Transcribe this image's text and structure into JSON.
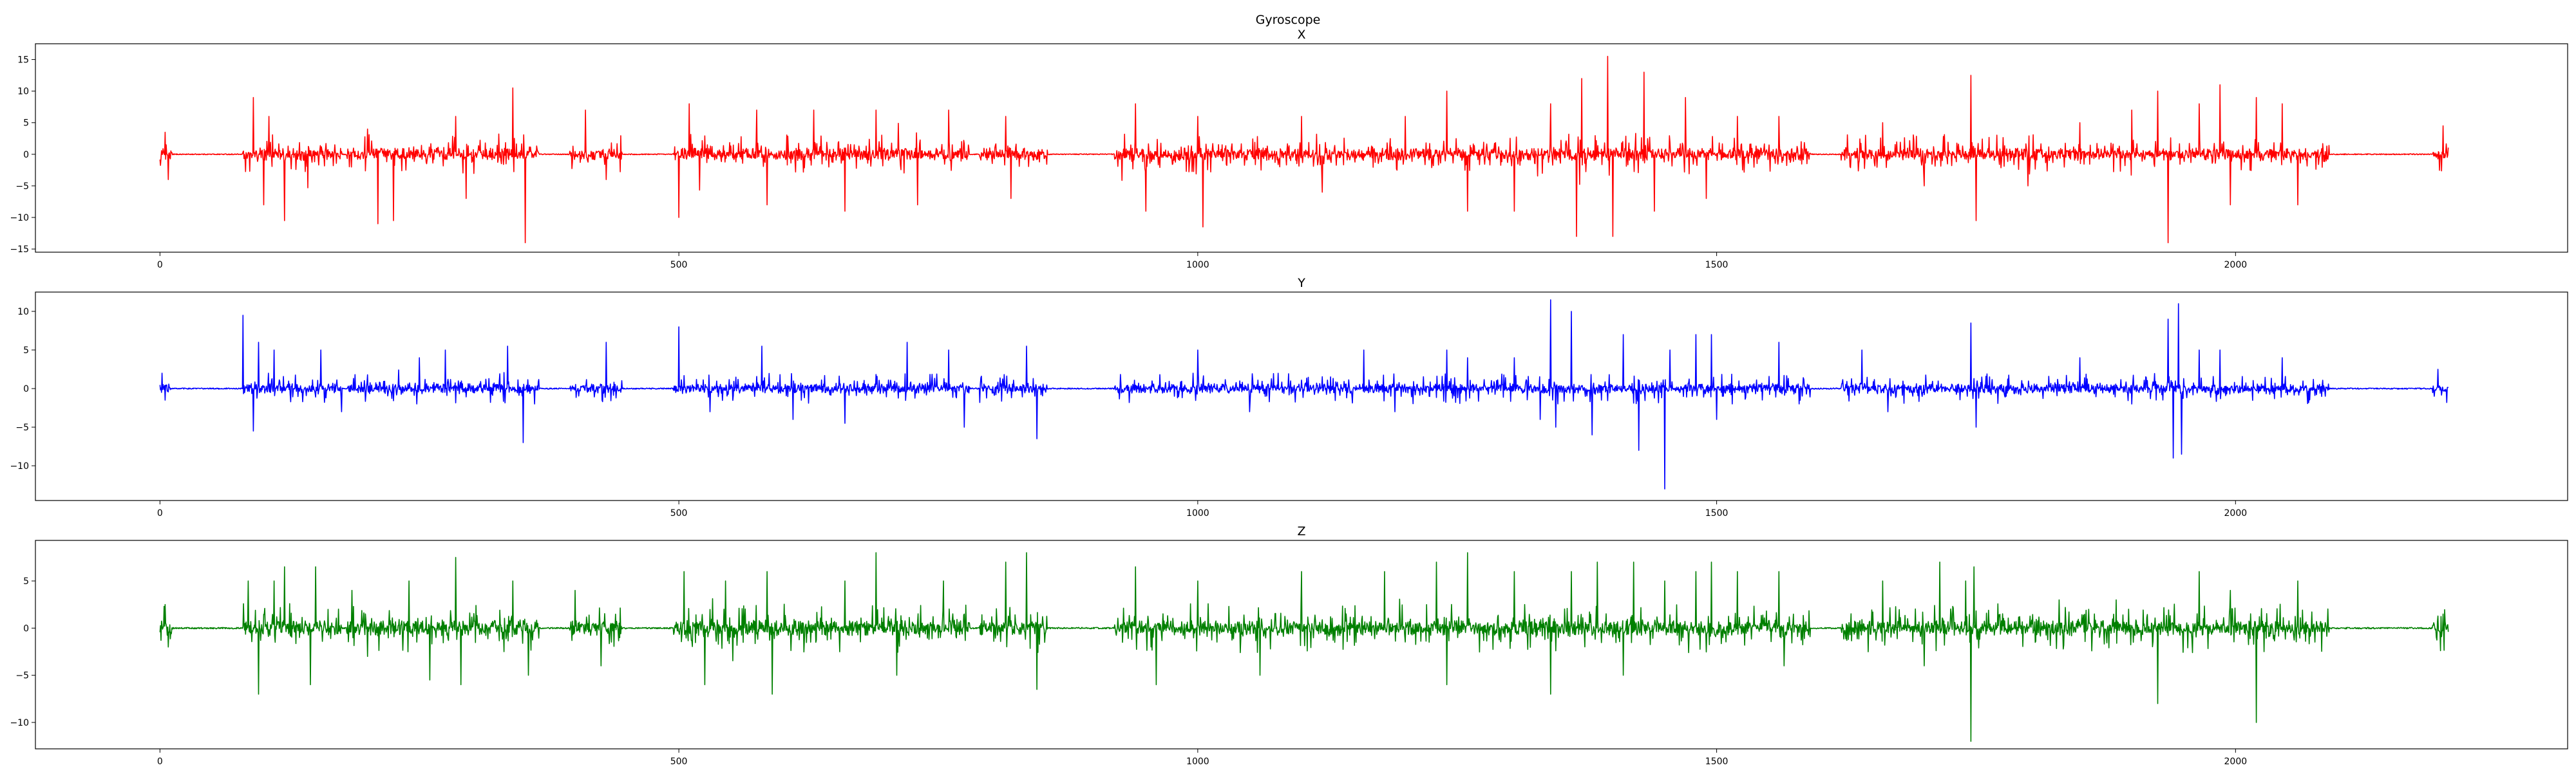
{
  "figure": {
    "title": "Gyroscope"
  },
  "chart_data": [
    {
      "type": "line",
      "title": "X",
      "xlabel": "",
      "ylabel": "",
      "xlim": [
        -120,
        2320
      ],
      "ylim": [
        -15.5,
        17.5
      ],
      "x_ticks": [
        0,
        500,
        1000,
        1500,
        2000
      ],
      "y_ticks": [
        -15,
        -10,
        -5,
        0,
        5,
        10,
        15
      ],
      "color": "#ff0000",
      "x_range": [
        0,
        2205
      ],
      "active_segments": [
        [
          0,
          12
        ],
        [
          80,
          175
        ],
        [
          180,
          365
        ],
        [
          395,
          445
        ],
        [
          495,
          780
        ],
        [
          790,
          855
        ],
        [
          920,
          1590
        ],
        [
          1620,
          2090
        ],
        [
          2190,
          2205
        ]
      ],
      "peaks": [
        {
          "x": 5,
          "y": 3.5
        },
        {
          "x": 8,
          "y": -4
        },
        {
          "x": 90,
          "y": 9
        },
        {
          "x": 100,
          "y": -8
        },
        {
          "x": 105,
          "y": 6
        },
        {
          "x": 120,
          "y": -10.5
        },
        {
          "x": 200,
          "y": 4
        },
        {
          "x": 210,
          "y": -11
        },
        {
          "x": 225,
          "y": -10.5
        },
        {
          "x": 285,
          "y": 6
        },
        {
          "x": 295,
          "y": -7
        },
        {
          "x": 340,
          "y": 10.5
        },
        {
          "x": 352,
          "y": -14
        },
        {
          "x": 410,
          "y": 7
        },
        {
          "x": 430,
          "y": -4
        },
        {
          "x": 510,
          "y": 8
        },
        {
          "x": 500,
          "y": -10
        },
        {
          "x": 575,
          "y": 7
        },
        {
          "x": 585,
          "y": -8
        },
        {
          "x": 630,
          "y": 7
        },
        {
          "x": 660,
          "y": -9
        },
        {
          "x": 690,
          "y": 7
        },
        {
          "x": 730,
          "y": -8
        },
        {
          "x": 760,
          "y": 7
        },
        {
          "x": 815,
          "y": 6
        },
        {
          "x": 820,
          "y": -7
        },
        {
          "x": 940,
          "y": 8
        },
        {
          "x": 950,
          "y": -9
        },
        {
          "x": 1000,
          "y": 6
        },
        {
          "x": 1005,
          "y": -11.5
        },
        {
          "x": 1100,
          "y": 6
        },
        {
          "x": 1120,
          "y": -6
        },
        {
          "x": 1200,
          "y": 6
        },
        {
          "x": 1240,
          "y": 10
        },
        {
          "x": 1260,
          "y": -9
        },
        {
          "x": 1305,
          "y": -9
        },
        {
          "x": 1340,
          "y": 8
        },
        {
          "x": 1365,
          "y": -13
        },
        {
          "x": 1370,
          "y": 12
        },
        {
          "x": 1395,
          "y": 15.5
        },
        {
          "x": 1400,
          "y": -13
        },
        {
          "x": 1430,
          "y": 13
        },
        {
          "x": 1440,
          "y": -9
        },
        {
          "x": 1470,
          "y": 9
        },
        {
          "x": 1490,
          "y": -7
        },
        {
          "x": 1520,
          "y": 6
        },
        {
          "x": 1560,
          "y": 6
        },
        {
          "x": 1660,
          "y": 5
        },
        {
          "x": 1700,
          "y": -5
        },
        {
          "x": 1745,
          "y": 12.5
        },
        {
          "x": 1750,
          "y": -10.5
        },
        {
          "x": 1800,
          "y": -5
        },
        {
          "x": 1850,
          "y": 5
        },
        {
          "x": 1900,
          "y": 7
        },
        {
          "x": 1925,
          "y": 10
        },
        {
          "x": 1935,
          "y": -14
        },
        {
          "x": 1965,
          "y": 8
        },
        {
          "x": 1985,
          "y": 11
        },
        {
          "x": 1995,
          "y": -8
        },
        {
          "x": 2020,
          "y": 9
        },
        {
          "x": 2045,
          "y": 8
        },
        {
          "x": 2060,
          "y": -8
        },
        {
          "x": 2200,
          "y": 4.5
        }
      ],
      "baseline": 0,
      "noise_amplitude": 3.2
    },
    {
      "type": "line",
      "title": "Y",
      "xlabel": "",
      "ylabel": "",
      "xlim": [
        -120,
        2320
      ],
      "ylim": [
        -14.5,
        12.5
      ],
      "x_ticks": [
        0,
        500,
        1000,
        1500,
        2000
      ],
      "y_ticks": [
        -10,
        -5,
        0,
        5,
        10
      ],
      "color": "#0000ff",
      "x_range": [
        0,
        2205
      ],
      "active_segments": [
        [
          0,
          10
        ],
        [
          80,
          175
        ],
        [
          180,
          365
        ],
        [
          395,
          445
        ],
        [
          495,
          780
        ],
        [
          790,
          855
        ],
        [
          920,
          1590
        ],
        [
          1620,
          2090
        ],
        [
          2190,
          2205
        ]
      ],
      "peaks": [
        {
          "x": 2,
          "y": 2
        },
        {
          "x": 5,
          "y": -1.5
        },
        {
          "x": 80,
          "y": 9.5
        },
        {
          "x": 90,
          "y": -5.5
        },
        {
          "x": 95,
          "y": 6
        },
        {
          "x": 110,
          "y": 5
        },
        {
          "x": 155,
          "y": 5
        },
        {
          "x": 175,
          "y": -3
        },
        {
          "x": 250,
          "y": 4
        },
        {
          "x": 275,
          "y": 5
        },
        {
          "x": 335,
          "y": 5.5
        },
        {
          "x": 350,
          "y": -7
        },
        {
          "x": 430,
          "y": 6
        },
        {
          "x": 500,
          "y": 8
        },
        {
          "x": 530,
          "y": -3
        },
        {
          "x": 580,
          "y": 5.5
        },
        {
          "x": 610,
          "y": -4
        },
        {
          "x": 660,
          "y": -4.5
        },
        {
          "x": 720,
          "y": 6
        },
        {
          "x": 760,
          "y": 5
        },
        {
          "x": 775,
          "y": -5
        },
        {
          "x": 835,
          "y": 5.5
        },
        {
          "x": 845,
          "y": -6.5
        },
        {
          "x": 1000,
          "y": 5
        },
        {
          "x": 1050,
          "y": -3
        },
        {
          "x": 1160,
          "y": 5
        },
        {
          "x": 1190,
          "y": -3
        },
        {
          "x": 1240,
          "y": 5
        },
        {
          "x": 1260,
          "y": 4
        },
        {
          "x": 1305,
          "y": 4
        },
        {
          "x": 1330,
          "y": -4
        },
        {
          "x": 1340,
          "y": 11.5
        },
        {
          "x": 1345,
          "y": -5
        },
        {
          "x": 1360,
          "y": 10
        },
        {
          "x": 1380,
          "y": -6
        },
        {
          "x": 1410,
          "y": 7
        },
        {
          "x": 1425,
          "y": -8
        },
        {
          "x": 1450,
          "y": -13
        },
        {
          "x": 1455,
          "y": 5
        },
        {
          "x": 1480,
          "y": 7
        },
        {
          "x": 1495,
          "y": 7
        },
        {
          "x": 1500,
          "y": -4
        },
        {
          "x": 1560,
          "y": 6
        },
        {
          "x": 1640,
          "y": 5
        },
        {
          "x": 1665,
          "y": -3
        },
        {
          "x": 1745,
          "y": 8.5
        },
        {
          "x": 1750,
          "y": -5
        },
        {
          "x": 1850,
          "y": 4
        },
        {
          "x": 1900,
          "y": -2
        },
        {
          "x": 1935,
          "y": 9
        },
        {
          "x": 1940,
          "y": -9
        },
        {
          "x": 1945,
          "y": 11
        },
        {
          "x": 1948,
          "y": -8.5
        },
        {
          "x": 1965,
          "y": 5
        },
        {
          "x": 1985,
          "y": 5
        },
        {
          "x": 2045,
          "y": 4
        },
        {
          "x": 2195,
          "y": 2.5
        }
      ],
      "baseline": 0,
      "noise_amplitude": 2.0
    },
    {
      "type": "line",
      "title": "Z",
      "xlabel": "",
      "ylabel": "",
      "xlim": [
        -120,
        2320
      ],
      "ylim": [
        -12.8,
        9.3
      ],
      "x_ticks": [
        0,
        500,
        1000,
        1500,
        2000
      ],
      "y_ticks": [
        -10,
        -5,
        0,
        5
      ],
      "color": "#008000",
      "x_range": [
        0,
        2205
      ],
      "active_segments": [
        [
          0,
          12
        ],
        [
          80,
          175
        ],
        [
          180,
          365
        ],
        [
          395,
          445
        ],
        [
          495,
          780
        ],
        [
          790,
          855
        ],
        [
          920,
          1590
        ],
        [
          1620,
          2090
        ],
        [
          2190,
          2205
        ]
      ],
      "peaks": [
        {
          "x": 5,
          "y": 2.5
        },
        {
          "x": 8,
          "y": -2
        },
        {
          "x": 85,
          "y": 5
        },
        {
          "x": 95,
          "y": -7
        },
        {
          "x": 110,
          "y": 5
        },
        {
          "x": 120,
          "y": 6.5
        },
        {
          "x": 145,
          "y": -6
        },
        {
          "x": 150,
          "y": 6.5
        },
        {
          "x": 185,
          "y": 4
        },
        {
          "x": 200,
          "y": -3
        },
        {
          "x": 240,
          "y": 5
        },
        {
          "x": 260,
          "y": -5.5
        },
        {
          "x": 285,
          "y": 7.5
        },
        {
          "x": 290,
          "y": -6
        },
        {
          "x": 340,
          "y": 5
        },
        {
          "x": 355,
          "y": -5
        },
        {
          "x": 400,
          "y": 4
        },
        {
          "x": 425,
          "y": -4
        },
        {
          "x": 505,
          "y": 6
        },
        {
          "x": 525,
          "y": -6
        },
        {
          "x": 545,
          "y": 5
        },
        {
          "x": 585,
          "y": 6
        },
        {
          "x": 590,
          "y": -7
        },
        {
          "x": 660,
          "y": 5
        },
        {
          "x": 690,
          "y": 8
        },
        {
          "x": 710,
          "y": -5
        },
        {
          "x": 755,
          "y": 5
        },
        {
          "x": 815,
          "y": 7
        },
        {
          "x": 835,
          "y": 8
        },
        {
          "x": 845,
          "y": -6.5
        },
        {
          "x": 940,
          "y": 6.5
        },
        {
          "x": 960,
          "y": -6
        },
        {
          "x": 1000,
          "y": 5
        },
        {
          "x": 1060,
          "y": -5
        },
        {
          "x": 1100,
          "y": 6
        },
        {
          "x": 1180,
          "y": 6
        },
        {
          "x": 1230,
          "y": 7
        },
        {
          "x": 1240,
          "y": -6
        },
        {
          "x": 1260,
          "y": 8
        },
        {
          "x": 1305,
          "y": 6
        },
        {
          "x": 1340,
          "y": -7
        },
        {
          "x": 1360,
          "y": 6
        },
        {
          "x": 1385,
          "y": 7
        },
        {
          "x": 1410,
          "y": -5
        },
        {
          "x": 1420,
          "y": 7
        },
        {
          "x": 1450,
          "y": 5
        },
        {
          "x": 1480,
          "y": 6
        },
        {
          "x": 1495,
          "y": 7
        },
        {
          "x": 1520,
          "y": 6
        },
        {
          "x": 1560,
          "y": 6
        },
        {
          "x": 1565,
          "y": -4
        },
        {
          "x": 1660,
          "y": 5
        },
        {
          "x": 1700,
          "y": -4
        },
        {
          "x": 1715,
          "y": 7
        },
        {
          "x": 1740,
          "y": 5
        },
        {
          "x": 1745,
          "y": -12
        },
        {
          "x": 1748,
          "y": 6.5
        },
        {
          "x": 1830,
          "y": 3
        },
        {
          "x": 1885,
          "y": 3
        },
        {
          "x": 1925,
          "y": -8
        },
        {
          "x": 1965,
          "y": 6
        },
        {
          "x": 1995,
          "y": 4
        },
        {
          "x": 2020,
          "y": -10
        },
        {
          "x": 2060,
          "y": 5
        },
        {
          "x": 2200,
          "y": 1.5
        }
      ],
      "baseline": 0,
      "noise_amplitude": 2.6
    }
  ]
}
